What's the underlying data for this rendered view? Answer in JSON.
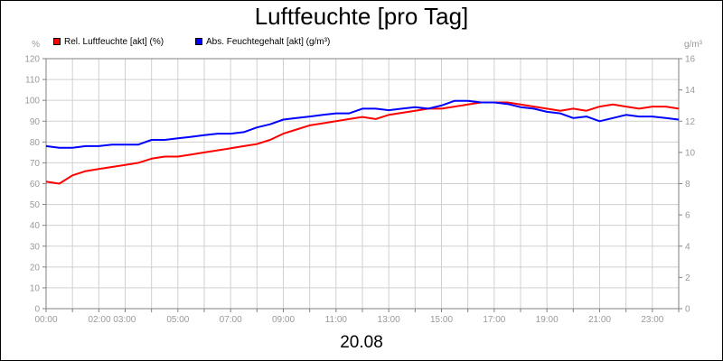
{
  "title": "Luftfeuchte [pro Tag]",
  "date": "20.08",
  "left_unit": "%",
  "right_unit": "g/m³",
  "legend": [
    {
      "label": "Rel. Luftfeuchte [akt] (%)",
      "color": "#ff0000"
    },
    {
      "label": "Abs. Feuchtegehalt [akt] (g/m³)",
      "color": "#0000ff"
    }
  ],
  "chart_data": {
    "type": "line",
    "title": "Luftfeuchte [pro Tag]",
    "xlabel": "20.08",
    "x_tick_labels": [
      "00:00",
      "02:00 03:00",
      "05:00",
      "07:00",
      "09:00",
      "11:00",
      "13:00",
      "15:00",
      "17:00",
      "19:00",
      "21:00",
      "23:00"
    ],
    "x_tick_hours": [
      0,
      2.5,
      5,
      7,
      9,
      11,
      13,
      15,
      17,
      19,
      21,
      23
    ],
    "x_range_hours": [
      0,
      24
    ],
    "y_left": {
      "unit": "%",
      "range": [
        0,
        120
      ],
      "ticks": [
        0,
        10,
        20,
        30,
        40,
        50,
        60,
        70,
        80,
        90,
        100,
        110,
        120
      ]
    },
    "y_right": {
      "unit": "g/m³",
      "range": [
        0,
        16
      ],
      "ticks": [
        0,
        2,
        4,
        6,
        8,
        10,
        12,
        14,
        16
      ]
    },
    "grid": true,
    "legend_position": "top-left",
    "series": [
      {
        "name": "Rel. Luftfeuchte [akt] (%)",
        "axis": "left",
        "color": "#ff0000",
        "x": [
          0,
          0.5,
          1,
          1.5,
          2,
          2.5,
          3,
          3.5,
          4,
          4.5,
          5,
          5.5,
          6,
          6.5,
          7,
          7.5,
          8,
          8.5,
          9,
          9.5,
          10,
          10.5,
          11,
          11.5,
          12,
          12.5,
          13,
          13.5,
          14,
          14.5,
          15,
          15.5,
          16,
          16.5,
          17,
          17.5,
          18,
          18.5,
          19,
          19.5,
          20,
          20.5,
          21,
          21.5,
          22,
          22.5,
          23,
          23.5,
          24
        ],
        "values": [
          61,
          60,
          64,
          66,
          67,
          68,
          69,
          70,
          72,
          73,
          73,
          74,
          75,
          76,
          77,
          78,
          79,
          81,
          84,
          86,
          88,
          89,
          90,
          91,
          92,
          91,
          93,
          94,
          95,
          96,
          96,
          97,
          98,
          99,
          99,
          99,
          98,
          97,
          96,
          95,
          96,
          95,
          97,
          98,
          97,
          96,
          97,
          97,
          96
        ]
      },
      {
        "name": "Abs. Feuchtegehalt [akt] (g/m³)",
        "axis": "right",
        "color": "#0000ff",
        "x": [
          0,
          0.5,
          1,
          1.5,
          2,
          2.5,
          3,
          3.5,
          4,
          4.5,
          5,
          5.5,
          6,
          6.5,
          7,
          7.5,
          8,
          8.5,
          9,
          9.5,
          10,
          10.5,
          11,
          11.5,
          12,
          12.5,
          13,
          13.5,
          14,
          14.5,
          15,
          15.5,
          16,
          16.5,
          17,
          17.5,
          18,
          18.5,
          19,
          19.5,
          20,
          20.5,
          21,
          21.5,
          22,
          22.5,
          23,
          23.5,
          24
        ],
        "values": [
          10.4,
          10.3,
          10.3,
          10.4,
          10.4,
          10.5,
          10.5,
          10.5,
          10.8,
          10.8,
          10.9,
          11.0,
          11.1,
          11.2,
          11.2,
          11.3,
          11.6,
          11.8,
          12.1,
          12.2,
          12.3,
          12.4,
          12.5,
          12.5,
          12.8,
          12.8,
          12.7,
          12.8,
          12.9,
          12.8,
          13.0,
          13.3,
          13.3,
          13.2,
          13.2,
          13.1,
          12.9,
          12.8,
          12.6,
          12.5,
          12.2,
          12.3,
          12.0,
          12.2,
          12.4,
          12.3,
          12.3,
          12.2,
          12.1
        ]
      }
    ]
  }
}
